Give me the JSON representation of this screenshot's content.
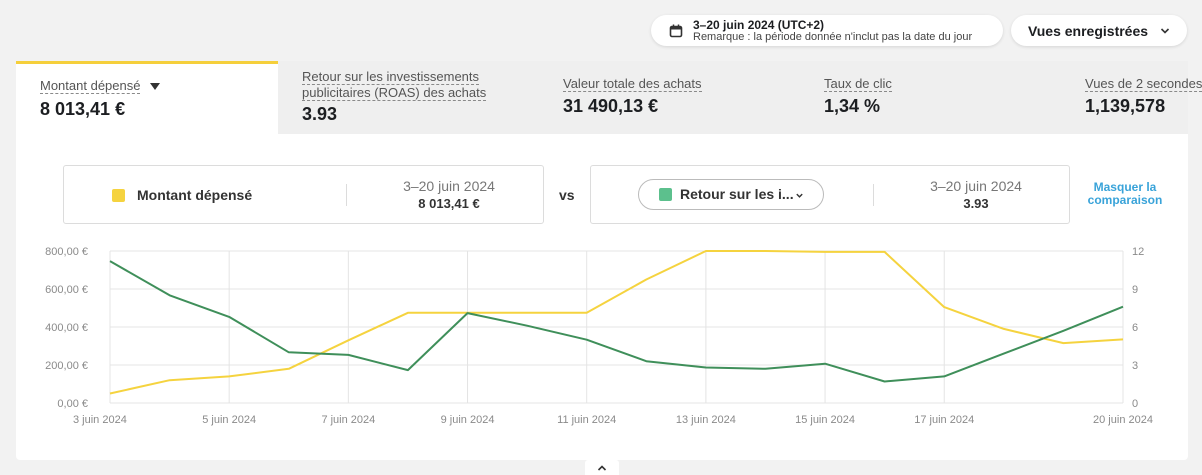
{
  "header": {
    "date_range": "3–20 juin 2024 (UTC+2)",
    "date_note": "Remarque : la période donnée n'inclut pas la date du jour",
    "saved_views_label": "Vues enregistrées",
    "calendar_icon": "calendar-icon",
    "chevron_icon": "chevron-down-icon"
  },
  "metrics": [
    {
      "label": "Montant dépensé",
      "value": "8 013,41 €"
    },
    {
      "label": "Retour sur les investissements publicitaires (ROAS) des achats",
      "value": "3.93"
    },
    {
      "label": "Valeur totale des achats",
      "value": "31 490,13 €"
    },
    {
      "label": "Taux de clic",
      "value": "1,34 %"
    },
    {
      "label": "Vues de 2 secondes",
      "value": "1,139,578"
    }
  ],
  "comparison": {
    "left": {
      "name": "Montant dépensé",
      "date": "3–20 juin 2024",
      "value": "8 013,41 €"
    },
    "vs": "vs",
    "right": {
      "name": "Retour sur les i...",
      "date": "3–20 juin 2024",
      "value": "3.93"
    },
    "hide_label": "Masquer la comparaison"
  },
  "colors": {
    "accent_yellow": "#f5d33f",
    "series_green": "#3f8f5a",
    "swatch_green": "#5cc08d",
    "link_blue": "#39a3d9"
  },
  "chart_data": {
    "type": "line",
    "x": [
      "3 juin 2024",
      "4 juin 2024",
      "5 juin 2024",
      "6 juin 2024",
      "7 juin 2024",
      "8 juin 2024",
      "9 juin 2024",
      "10 juin 2024",
      "11 juin 2024",
      "12 juin 2024",
      "13 juin 2024",
      "14 juin 2024",
      "15 juin 2024",
      "16 juin 2024",
      "17 juin 2024",
      "18 juin 2024",
      "19 juin 2024",
      "20 juin 2024"
    ],
    "x_tick_labels": [
      "3 juin 2024",
      "5 juin 2024",
      "7 juin 2024",
      "9 juin 2024",
      "11 juin 2024",
      "13 juin 2024",
      "15 juin 2024",
      "17 juin 2024",
      "20 juin 2024"
    ],
    "x_tick_indices": [
      0,
      2,
      4,
      6,
      8,
      10,
      12,
      14,
      17
    ],
    "series": [
      {
        "name": "Montant dépensé",
        "axis": "left",
        "color": "#f5d33f",
        "values": [
          50,
          120,
          140,
          180,
          330,
          475,
          475,
          475,
          475,
          650,
          800,
          800,
          795,
          795,
          505,
          390,
          315,
          335
        ]
      },
      {
        "name": "Retour sur les investissements publicitaires (ROAS) des achats",
        "axis": "right",
        "color": "#3f8f5a",
        "values": [
          11.2,
          8.5,
          6.8,
          4.0,
          3.8,
          2.6,
          7.1,
          6.1,
          5.0,
          3.3,
          2.8,
          2.7,
          3.1,
          1.7,
          2.1,
          3.9,
          5.7,
          7.6
        ]
      }
    ],
    "y_left_ticks": [
      "0,00 €",
      "200,00 €",
      "400,00 €",
      "600,00 €",
      "800,00 €"
    ],
    "y_left_range": [
      0,
      800
    ],
    "y_right_ticks": [
      "0",
      "3",
      "6",
      "9",
      "12"
    ],
    "y_right_range": [
      0,
      12
    ],
    "grid": true
  }
}
